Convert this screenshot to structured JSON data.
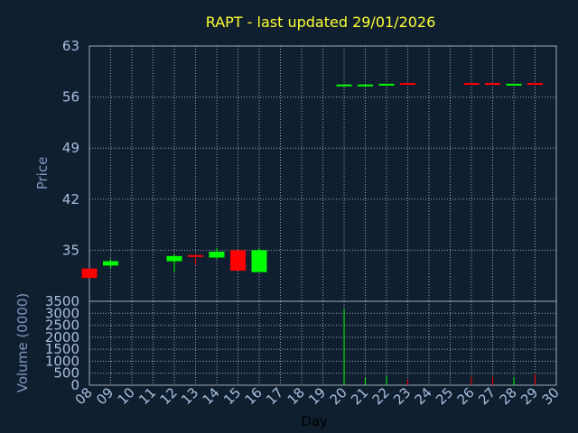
{
  "chart_data": [
    {
      "type": "candlestick",
      "title": "RAPT - last updated 29/01/2026",
      "ylabel": "Price",
      "ylim": [
        28,
        63
      ],
      "yticks": [
        35,
        42,
        49,
        56,
        63
      ],
      "grid": true,
      "colors": {
        "up": "#00ff00",
        "down": "#ff0000",
        "background": "#0f1f30",
        "grid": "#a0a8b8",
        "title": "#ffff33",
        "label": "#7f97c0"
      },
      "x": [
        8,
        9,
        12,
        13,
        14,
        15,
        16,
        20,
        21,
        22,
        23,
        26,
        27,
        28,
        29
      ],
      "series": [
        {
          "open": [
            32.5,
            33.5,
            33.5,
            34.2,
            34.0,
            35.0,
            32.0,
            57.6,
            57.6,
            57.7,
            57.8,
            57.8,
            57.8,
            57.7,
            57.8
          ],
          "high": [
            32.5,
            33.8,
            34.5,
            34.5,
            35.3,
            35.0,
            35.3,
            57.6,
            57.6,
            57.7,
            57.8,
            57.8,
            57.8,
            57.7,
            57.8
          ],
          "low": [
            31.2,
            32.5,
            32.0,
            33.0,
            33.8,
            32.2,
            32.0,
            57.6,
            57.4,
            57.7,
            57.8,
            57.8,
            57.8,
            57.7,
            57.8
          ],
          "close": [
            31.2,
            32.9,
            34.2,
            34.2,
            34.8,
            32.2,
            35.0,
            57.6,
            57.6,
            57.7,
            57.8,
            57.8,
            57.8,
            57.7,
            57.8
          ],
          "direction": [
            "down",
            "up",
            "up",
            "down",
            "up",
            "down",
            "up",
            "up",
            "up",
            "up",
            "down",
            "down",
            "down",
            "up",
            "down"
          ]
        }
      ]
    },
    {
      "type": "bar",
      "ylabel": "Volume (0000)",
      "xlabel": "Day",
      "ylim": [
        0,
        3500
      ],
      "yticks": [
        0,
        500,
        1000,
        1500,
        2000,
        2500,
        3000,
        3500
      ],
      "grid": true,
      "x": [
        8,
        9,
        12,
        13,
        14,
        15,
        16,
        20,
        21,
        22,
        23,
        26,
        27,
        28,
        29
      ],
      "values": [
        0,
        0,
        0,
        0,
        0,
        0,
        0,
        3200,
        300,
        400,
        250,
        350,
        350,
        350,
        450
      ],
      "direction": [
        "down",
        "up",
        "up",
        "down",
        "up",
        "down",
        "up",
        "up",
        "up",
        "up",
        "down",
        "down",
        "down",
        "up",
        "down"
      ],
      "xticks": [
        "08",
        "09",
        "10",
        "11",
        "12",
        "13",
        "14",
        "15",
        "16",
        "17",
        "18",
        "19",
        "20",
        "21",
        "22",
        "23",
        "24",
        "25",
        "26",
        "27",
        "28",
        "29",
        "30"
      ]
    }
  ]
}
